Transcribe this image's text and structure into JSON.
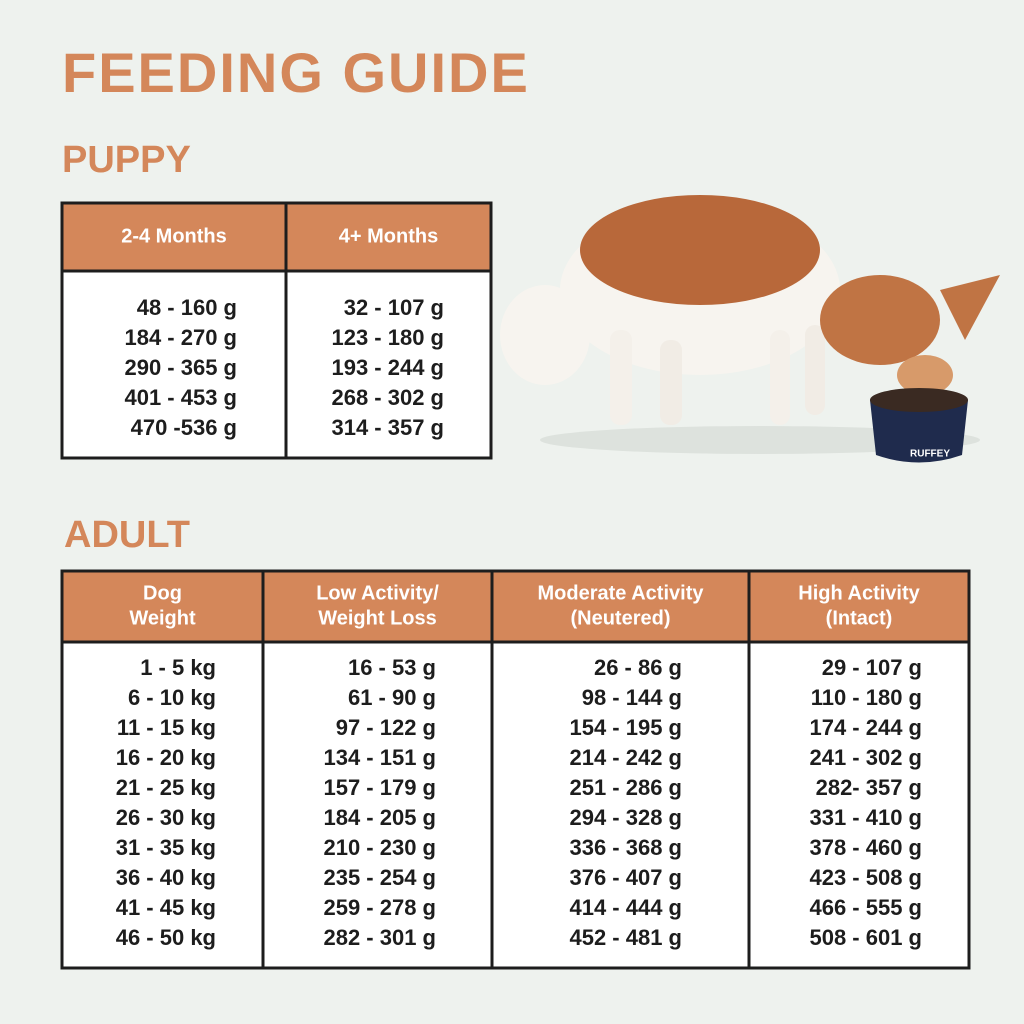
{
  "header": {
    "title": "FEEDING GUIDE"
  },
  "puppy": {
    "title": "PUPPY",
    "table": {
      "headers": [
        [
          "2-4 Months"
        ],
        [
          "4+ Months"
        ]
      ],
      "rows": [
        [
          "48 - 160 g",
          "32 - 107 g"
        ],
        [
          "184 - 270 g",
          "123 - 180 g"
        ],
        [
          "290 - 365 g",
          "193 - 244 g"
        ],
        [
          "401 - 453 g",
          "268 - 302 g"
        ],
        [
          "470 -536 g",
          "314 - 357 g"
        ]
      ]
    }
  },
  "image": {
    "bowl_label": "RUFFEY"
  },
  "adult": {
    "title": "ADULT",
    "table": {
      "headers": [
        [
          "Dog",
          "Weight"
        ],
        [
          "Low Activity/",
          "Weight Loss"
        ],
        [
          "Moderate Activity",
          "(Neutered)"
        ],
        [
          "High Activity",
          "(Intact)"
        ]
      ],
      "rows": [
        [
          "1 - 5 kg",
          "16 - 53 g",
          "26 - 86 g",
          "29 - 107 g"
        ],
        [
          "6 - 10 kg",
          "61 - 90 g",
          "98 - 144 g",
          "110 - 180 g"
        ],
        [
          "11 - 15 kg",
          "97 - 122 g",
          "154 - 195 g",
          "174 - 244 g"
        ],
        [
          "16 - 20 kg",
          "134 - 151 g",
          "214 - 242 g",
          "241 - 302 g"
        ],
        [
          "21 - 25 kg",
          "157 - 179 g",
          "251 - 286 g",
          "282- 357 g"
        ],
        [
          "26 - 30 kg",
          "184 - 205 g",
          "294 - 328 g",
          "331 - 410 g"
        ],
        [
          "31 - 35 kg",
          "210 - 230 g",
          "336 - 368 g",
          "378 - 460 g"
        ],
        [
          "36 - 40 kg",
          "235 - 254 g",
          "376 - 407 g",
          "423 - 508 g"
        ],
        [
          "41 - 45 kg",
          "259 - 278 g",
          "414 - 444 g",
          "466 - 555 g"
        ],
        [
          "46 - 50 kg",
          "282 - 301 g",
          "452 - 481 g",
          "508 - 601 g"
        ]
      ]
    }
  }
}
